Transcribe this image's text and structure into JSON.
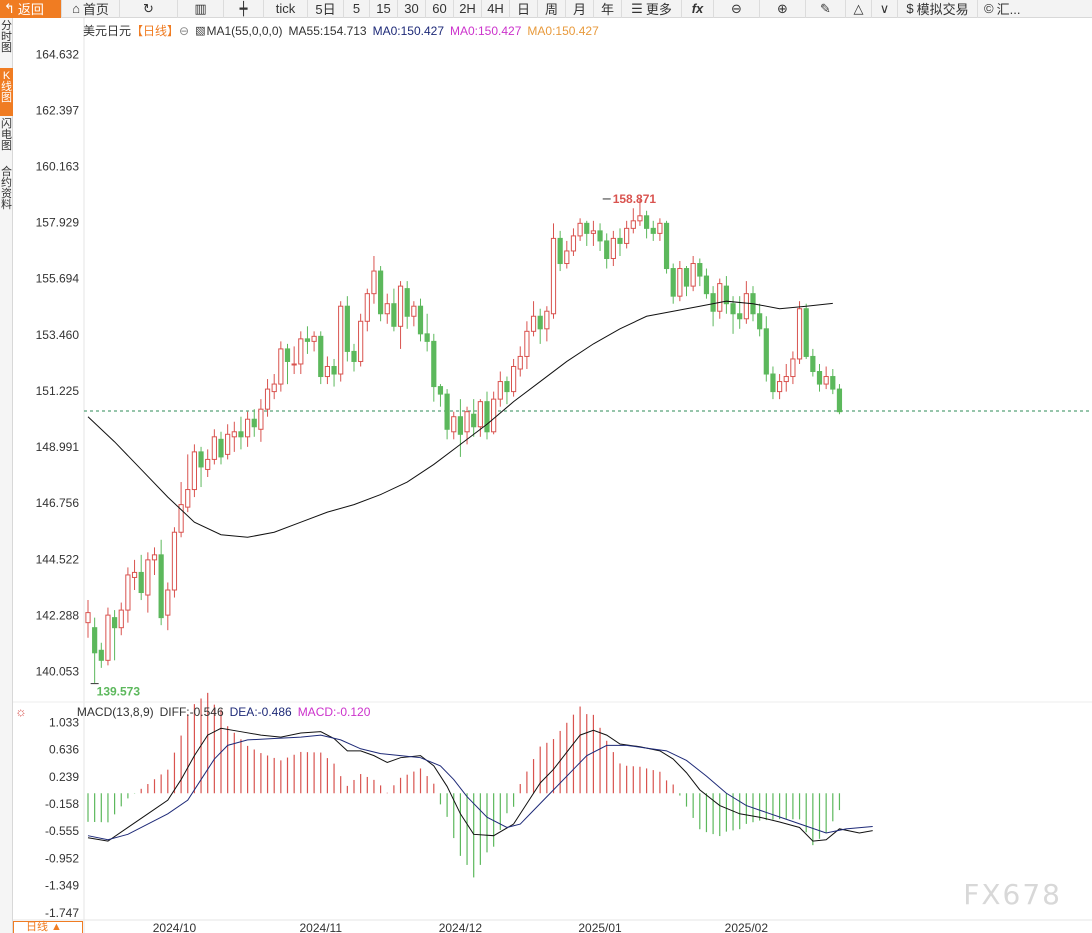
{
  "toolbar": {
    "back": "返回",
    "home": "首页",
    "tick": "tick",
    "five_day": "5日",
    "p5": "5",
    "p15": "15",
    "p30": "30",
    "p60": "60",
    "p2h": "2H",
    "p4h": "4H",
    "day": "日",
    "week": "周",
    "month": "月",
    "year": "年",
    "more": "更多",
    "fx": "fx",
    "sim_trade": "模拟交易",
    "currency": "汇..."
  },
  "side_tabs": [
    {
      "label": "分时图",
      "active": false
    },
    {
      "label": "K线图",
      "active": true
    },
    {
      "label": "闪电图",
      "active": false
    },
    {
      "label": "合约资料",
      "active": false
    }
  ],
  "colors": {
    "up": "#d9534f",
    "down": "#5cb85c",
    "ma": "#111111",
    "dif": "#111111",
    "dea": "#1e2a78",
    "macd_label": "#cc33cc",
    "ma0_label2": "#e89a3c",
    "accent": "#f07c22",
    "current_price_line": "#2e8b57",
    "max_label": "#d9534f",
    "min_label": "#5cb85c"
  },
  "legend": {
    "name": "美元日元",
    "period": "【日线】",
    "ma1": "MA1(55,0,0,0)",
    "ma55": "MA55:154.713",
    "ma0a": "MA0:150.427",
    "ma0b": "MA0:150.427",
    "ma0c": "MA0:150.427"
  },
  "macd_legend": {
    "name": "MACD(13,8,9)",
    "dif": "DIFF:-0.546",
    "dea": "DEA:-0.486",
    "macd": "MACD:-0.120"
  },
  "period_tab": "日线 ▲",
  "watermark": "FX678",
  "chart_data": {
    "type": "candlestick",
    "price_axis": {
      "ticks": [
        164.632,
        162.397,
        160.163,
        157.929,
        155.694,
        153.46,
        151.225,
        148.991,
        146.756,
        144.522,
        142.288,
        140.053
      ],
      "range": [
        139.0,
        165.2
      ]
    },
    "macd_axis": {
      "ticks": [
        1.033,
        0.636,
        0.239,
        -0.158,
        -0.555,
        -0.952,
        -1.349,
        -1.747
      ],
      "range": [
        -1.75,
        1.1
      ]
    },
    "x_labels": [
      {
        "label": "2024/10",
        "index": 13
      },
      {
        "label": "2024/11",
        "index": 35
      },
      {
        "label": "2024/12",
        "index": 56
      },
      {
        "label": "2025/01",
        "index": 77
      },
      {
        "label": "2025/02",
        "index": 99
      }
    ],
    "current_price": 150.427,
    "max_marker": {
      "value": 158.871,
      "index": 78
    },
    "min_marker": {
      "value": 139.573,
      "index": 1
    },
    "candles": [
      [
        142.0,
        142.4,
        142.9,
        141.4
      ],
      [
        141.8,
        140.8,
        142.2,
        139.6
      ],
      [
        140.9,
        140.5,
        141.2,
        140.2
      ],
      [
        140.5,
        142.3,
        142.6,
        140.3
      ],
      [
        142.2,
        141.8,
        142.5,
        140.5
      ],
      [
        141.8,
        142.5,
        142.8,
        141.5
      ],
      [
        142.5,
        143.9,
        144.2,
        142.0
      ],
      [
        143.8,
        144.0,
        144.5,
        143.3
      ],
      [
        144.0,
        143.2,
        144.7,
        142.9
      ],
      [
        143.1,
        144.5,
        144.8,
        142.4
      ],
      [
        144.5,
        144.7,
        145.0,
        143.9
      ],
      [
        144.7,
        142.2,
        145.3,
        141.9
      ],
      [
        142.3,
        143.3,
        143.6,
        141.7
      ],
      [
        143.3,
        145.6,
        145.8,
        143.0
      ],
      [
        145.6,
        146.7,
        147.6,
        145.4
      ],
      [
        146.6,
        147.3,
        148.7,
        146.4
      ],
      [
        147.3,
        148.8,
        149.1,
        147.0
      ],
      [
        148.8,
        148.2,
        149.0,
        147.4
      ],
      [
        148.1,
        148.5,
        148.9,
        147.8
      ],
      [
        148.5,
        149.4,
        149.7,
        148.3
      ],
      [
        149.3,
        148.6,
        149.6,
        148.3
      ],
      [
        148.7,
        149.5,
        149.9,
        148.5
      ],
      [
        149.4,
        149.6,
        150.0,
        148.8
      ],
      [
        149.6,
        149.4,
        150.2,
        148.9
      ],
      [
        149.4,
        150.1,
        150.4,
        149.0
      ],
      [
        150.1,
        149.8,
        150.5,
        149.4
      ],
      [
        149.7,
        150.5,
        150.9,
        149.2
      ],
      [
        150.5,
        151.3,
        151.7,
        150.2
      ],
      [
        151.2,
        151.5,
        151.9,
        150.9
      ],
      [
        151.5,
        152.9,
        153.2,
        151.2
      ],
      [
        152.9,
        152.4,
        153.1,
        151.5
      ],
      [
        152.3,
        152.3,
        153.0,
        151.9
      ],
      [
        152.3,
        153.3,
        153.6,
        151.9
      ],
      [
        153.3,
        153.2,
        153.8,
        152.7
      ],
      [
        153.2,
        153.4,
        153.6,
        152.8
      ],
      [
        153.4,
        151.8,
        153.6,
        151.5
      ],
      [
        151.8,
        152.2,
        152.6,
        151.5
      ],
      [
        152.2,
        151.9,
        152.5,
        151.4
      ],
      [
        151.9,
        154.6,
        154.8,
        151.6
      ],
      [
        154.6,
        152.8,
        155.0,
        152.4
      ],
      [
        152.8,
        152.4,
        153.1,
        152.0
      ],
      [
        152.4,
        154.0,
        154.3,
        152.2
      ],
      [
        154.0,
        155.1,
        155.3,
        153.6
      ],
      [
        155.1,
        156.0,
        156.6,
        154.7
      ],
      [
        156.0,
        154.3,
        156.2,
        154.0
      ],
      [
        154.3,
        154.7,
        155.1,
        153.9
      ],
      [
        154.7,
        153.8,
        155.3,
        153.6
      ],
      [
        153.8,
        155.4,
        155.6,
        152.9
      ],
      [
        155.3,
        154.2,
        155.6,
        153.7
      ],
      [
        154.2,
        154.6,
        154.8,
        153.8
      ],
      [
        154.6,
        153.5,
        154.9,
        153.2
      ],
      [
        153.5,
        153.2,
        154.3,
        152.8
      ],
      [
        153.2,
        151.4,
        153.5,
        150.8
      ],
      [
        151.4,
        151.1,
        151.5,
        150.6
      ],
      [
        151.1,
        149.7,
        151.3,
        149.3
      ],
      [
        149.6,
        150.2,
        150.4,
        149.3
      ],
      [
        150.2,
        149.5,
        150.9,
        148.6
      ],
      [
        149.6,
        150.4,
        150.6,
        149.1
      ],
      [
        150.3,
        149.8,
        150.9,
        149.4
      ],
      [
        149.8,
        150.8,
        150.9,
        149.4
      ],
      [
        150.8,
        149.6,
        151.2,
        149.3
      ],
      [
        149.6,
        150.9,
        151.2,
        149.5
      ],
      [
        150.9,
        151.6,
        152.0,
        150.6
      ],
      [
        151.6,
        151.2,
        151.8,
        150.7
      ],
      [
        151.2,
        152.2,
        152.5,
        151.0
      ],
      [
        152.1,
        152.6,
        153.0,
        151.8
      ],
      [
        152.6,
        153.6,
        154.0,
        152.1
      ],
      [
        153.6,
        154.2,
        154.8,
        153.4
      ],
      [
        154.2,
        153.7,
        154.5,
        153.1
      ],
      [
        153.7,
        154.4,
        154.6,
        153.2
      ],
      [
        154.3,
        157.3,
        157.9,
        154.1
      ],
      [
        157.3,
        156.3,
        157.6,
        156.0
      ],
      [
        156.3,
        156.8,
        157.2,
        156.1
      ],
      [
        156.8,
        157.4,
        157.7,
        156.6
      ],
      [
        157.4,
        157.9,
        158.1,
        157.2
      ],
      [
        157.9,
        157.5,
        158.0,
        157.0
      ],
      [
        157.5,
        157.6,
        158.0,
        157.0
      ],
      [
        157.6,
        157.2,
        157.9,
        156.8
      ],
      [
        157.2,
        156.5,
        157.5,
        156.1
      ],
      [
        156.5,
        157.3,
        157.6,
        156.2
      ],
      [
        157.3,
        157.1,
        157.7,
        156.6
      ],
      [
        157.1,
        157.7,
        158.0,
        156.9
      ],
      [
        157.7,
        158.0,
        158.5,
        157.5
      ],
      [
        158.0,
        158.2,
        158.871,
        157.8
      ],
      [
        158.2,
        157.7,
        158.4,
        157.3
      ],
      [
        157.7,
        157.5,
        158.0,
        157.2
      ],
      [
        157.5,
        157.9,
        158.1,
        157.2
      ],
      [
        157.9,
        156.1,
        158.0,
        155.9
      ],
      [
        156.1,
        155.0,
        156.3,
        154.7
      ],
      [
        155.0,
        156.1,
        156.4,
        154.8
      ],
      [
        156.1,
        155.4,
        156.2,
        155.0
      ],
      [
        155.4,
        156.3,
        156.6,
        155.2
      ],
      [
        156.3,
        155.8,
        156.5,
        155.4
      ],
      [
        155.8,
        155.1,
        156.1,
        154.9
      ],
      [
        155.1,
        154.4,
        155.4,
        153.8
      ],
      [
        154.4,
        155.5,
        155.7,
        154.1
      ],
      [
        155.4,
        154.7,
        155.8,
        154.3
      ],
      [
        154.7,
        154.3,
        155.0,
        153.5
      ],
      [
        154.3,
        154.1,
        155.0,
        153.7
      ],
      [
        154.1,
        155.1,
        155.6,
        153.9
      ],
      [
        155.1,
        154.3,
        155.4,
        154.0
      ],
      [
        154.3,
        153.7,
        154.7,
        153.4
      ],
      [
        153.7,
        151.9,
        154.2,
        151.6
      ],
      [
        151.9,
        151.2,
        152.2,
        150.9
      ],
      [
        151.2,
        151.6,
        151.9,
        150.9
      ],
      [
        151.6,
        151.8,
        152.3,
        151.2
      ],
      [
        151.8,
        152.5,
        152.8,
        151.5
      ],
      [
        152.5,
        154.5,
        154.8,
        152.3
      ],
      [
        154.5,
        152.6,
        154.7,
        152.5
      ],
      [
        152.6,
        152.0,
        152.9,
        151.8
      ],
      [
        152.0,
        151.5,
        152.3,
        151.2
      ],
      [
        151.5,
        151.8,
        152.2,
        151.3
      ],
      [
        151.8,
        151.3,
        152.1,
        151.1
      ],
      [
        151.3,
        150.4,
        151.5,
        150.3
      ]
    ],
    "ma55": [
      [
        0,
        150.2
      ],
      [
        4,
        149.2
      ],
      [
        8,
        148.1
      ],
      [
        12,
        147.0
      ],
      [
        16,
        146.0
      ],
      [
        20,
        145.5
      ],
      [
        24,
        145.4
      ],
      [
        28,
        145.6
      ],
      [
        32,
        146.0
      ],
      [
        36,
        146.4
      ],
      [
        40,
        146.7
      ],
      [
        44,
        147.1
      ],
      [
        48,
        147.6
      ],
      [
        52,
        148.3
      ],
      [
        56,
        149.1
      ],
      [
        60,
        149.9
      ],
      [
        64,
        150.8
      ],
      [
        68,
        151.6
      ],
      [
        72,
        152.4
      ],
      [
        76,
        153.1
      ],
      [
        80,
        153.7
      ],
      [
        84,
        154.2
      ],
      [
        88,
        154.4
      ],
      [
        92,
        154.6
      ],
      [
        96,
        154.8
      ],
      [
        100,
        154.7
      ],
      [
        104,
        154.5
      ],
      [
        108,
        154.6
      ],
      [
        112,
        154.713
      ]
    ],
    "dif": [
      [
        0,
        -0.65
      ],
      [
        3,
        -0.7
      ],
      [
        6,
        -0.5
      ],
      [
        9,
        -0.3
      ],
      [
        12,
        -0.1
      ],
      [
        14,
        0.2
      ],
      [
        16,
        0.55
      ],
      [
        18,
        0.85
      ],
      [
        20,
        0.95
      ],
      [
        23,
        0.9
      ],
      [
        26,
        0.85
      ],
      [
        29,
        0.82
      ],
      [
        32,
        0.88
      ],
      [
        35,
        0.9
      ],
      [
        37,
        0.8
      ],
      [
        39,
        0.62
      ],
      [
        41,
        0.62
      ],
      [
        43,
        0.55
      ],
      [
        45,
        0.45
      ],
      [
        47,
        0.52
      ],
      [
        50,
        0.55
      ],
      [
        52,
        0.4
      ],
      [
        54,
        0.1
      ],
      [
        56,
        -0.3
      ],
      [
        58,
        -0.6
      ],
      [
        61,
        -0.62
      ],
      [
        64,
        -0.45
      ],
      [
        66,
        -0.15
      ],
      [
        68,
        0.15
      ],
      [
        70,
        0.35
      ],
      [
        72,
        0.6
      ],
      [
        74,
        0.85
      ],
      [
        76,
        0.92
      ],
      [
        78,
        0.85
      ],
      [
        80,
        0.72
      ],
      [
        83,
        0.68
      ],
      [
        86,
        0.62
      ],
      [
        88,
        0.5
      ],
      [
        90,
        0.3
      ],
      [
        92,
        0.05
      ],
      [
        95,
        -0.18
      ],
      [
        98,
        -0.3
      ],
      [
        101,
        -0.35
      ],
      [
        104,
        -0.42
      ],
      [
        107,
        -0.5
      ],
      [
        109,
        -0.7
      ],
      [
        111,
        -0.68
      ],
      [
        113,
        -0.52
      ],
      [
        116,
        -0.58
      ],
      [
        118,
        -0.546
      ]
    ],
    "dea": [
      [
        0,
        -0.62
      ],
      [
        3,
        -0.68
      ],
      [
        6,
        -0.6
      ],
      [
        9,
        -0.45
      ],
      [
        12,
        -0.3
      ],
      [
        15,
        -0.1
      ],
      [
        17,
        0.2
      ],
      [
        19,
        0.5
      ],
      [
        21,
        0.7
      ],
      [
        24,
        0.78
      ],
      [
        28,
        0.8
      ],
      [
        32,
        0.82
      ],
      [
        35,
        0.85
      ],
      [
        38,
        0.78
      ],
      [
        41,
        0.65
      ],
      [
        44,
        0.58
      ],
      [
        47,
        0.55
      ],
      [
        50,
        0.52
      ],
      [
        53,
        0.4
      ],
      [
        55,
        0.2
      ],
      [
        57,
        -0.05
      ],
      [
        60,
        -0.35
      ],
      [
        63,
        -0.5
      ],
      [
        65,
        -0.45
      ],
      [
        67,
        -0.25
      ],
      [
        70,
        0.05
      ],
      [
        73,
        0.35
      ],
      [
        75,
        0.55
      ],
      [
        78,
        0.7
      ],
      [
        81,
        0.7
      ],
      [
        84,
        0.66
      ],
      [
        87,
        0.62
      ],
      [
        90,
        0.48
      ],
      [
        93,
        0.25
      ],
      [
        96,
        0.0
      ],
      [
        99,
        -0.18
      ],
      [
        102,
        -0.28
      ],
      [
        105,
        -0.38
      ],
      [
        108,
        -0.48
      ],
      [
        111,
        -0.58
      ],
      [
        114,
        -0.52
      ],
      [
        118,
        -0.486
      ]
    ]
  }
}
